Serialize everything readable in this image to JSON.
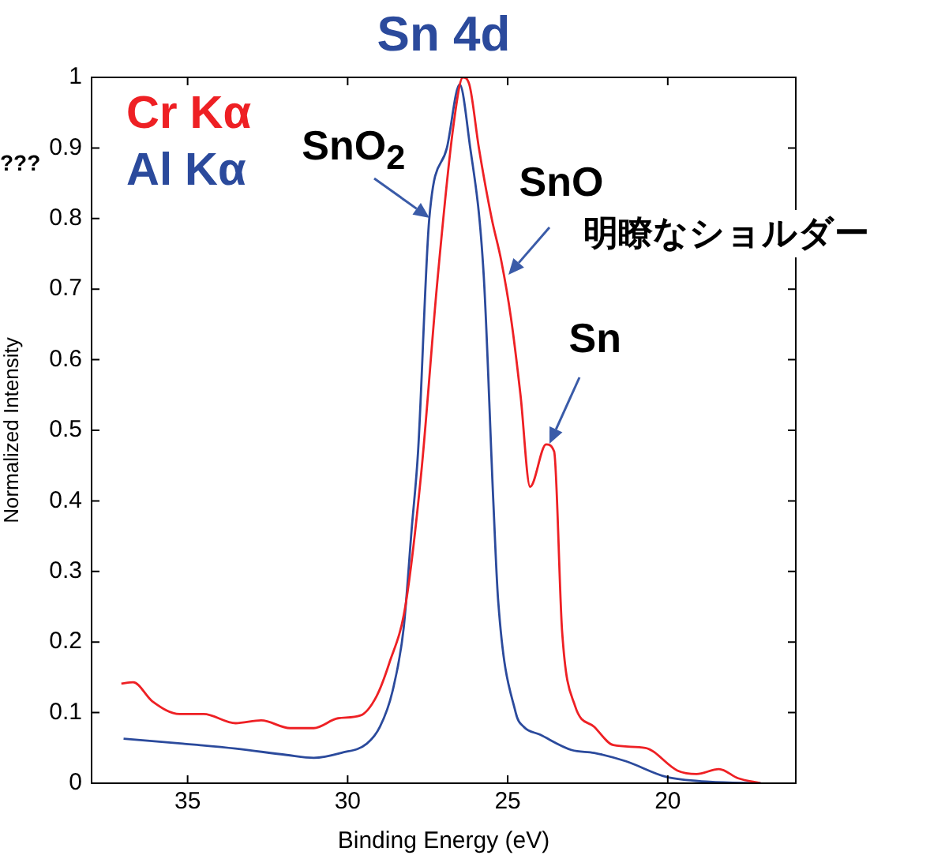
{
  "chart_data": {
    "type": "line",
    "title": "Sn 4d",
    "xlabel": "Binding Energy (eV)",
    "ylabel": "Normalized Intensity",
    "xlim": [
      38,
      16
    ],
    "xticks": [
      35,
      30,
      25,
      20
    ],
    "ylim": [
      0,
      1
    ],
    "yticks": [
      0,
      0.1,
      0.2,
      0.3,
      0.4,
      0.5,
      0.6,
      0.7,
      0.8,
      0.9,
      1
    ],
    "grid": false,
    "legend": "top left",
    "marker": "none",
    "line_style": "solid",
    "series": [
      {
        "name": "Cr Kα",
        "color": "#ee2024",
        "x": [
          37.07,
          36.7,
          36.1,
          35.25,
          34.5,
          33.5,
          32.7,
          31.8,
          31.06,
          30.3,
          29.6,
          29.1,
          28.7,
          28.2,
          27.7,
          27.2,
          26.7,
          26.4,
          26.2,
          25.9,
          25.5,
          25.2,
          24.9,
          24.6,
          24.3,
          23.8,
          23.55,
          23.3,
          22.9,
          22.3,
          21.7,
          20.7,
          19.7,
          19.1,
          18.4,
          17.8,
          17.1
        ],
        "values": [
          0.141,
          0.143,
          0.116,
          0.098,
          0.098,
          0.085,
          0.089,
          0.078,
          0.078,
          0.092,
          0.096,
          0.123,
          0.17,
          0.25,
          0.44,
          0.71,
          0.93,
          1.0,
          0.99,
          0.9,
          0.8,
          0.74,
          0.66,
          0.55,
          0.42,
          0.48,
          0.47,
          0.215,
          0.11,
          0.08,
          0.054,
          0.05,
          0.018,
          0.013,
          0.02,
          0.007,
          0.0
        ]
      },
      {
        "name": "Al Kα",
        "color": "#2b4a9c",
        "x": [
          37.0,
          35.15,
          33.5,
          31.9,
          31.06,
          30.2,
          29.4,
          28.99,
          28.6,
          28.25,
          28.0,
          27.8,
          27.45,
          26.9,
          26.5,
          26.2,
          25.75,
          25.45,
          25.3,
          24.75,
          24.5,
          24.0,
          23.0,
          22.3,
          21.3,
          20.05,
          18.7,
          17.1
        ],
        "values": [
          0.063,
          0.056,
          0.049,
          0.04,
          0.036,
          0.043,
          0.056,
          0.08,
          0.13,
          0.22,
          0.36,
          0.47,
          0.8,
          0.9,
          0.99,
          0.91,
          0.72,
          0.4,
          0.26,
          0.1,
          0.08,
          0.069,
          0.047,
          0.043,
          0.031,
          0.009,
          0.002,
          0.0
        ]
      }
    ],
    "annotations": [
      {
        "text": "SnO$_{2}$",
        "x": 27.45,
        "y": 0.8
      },
      {
        "text": "SnO",
        "x": 25.0,
        "y": 0.72
      },
      "明瞭なショルダー",
      {
        "text": "Sn",
        "x": 23.7,
        "y": 0.48
      },
      "???"
    ]
  }
}
